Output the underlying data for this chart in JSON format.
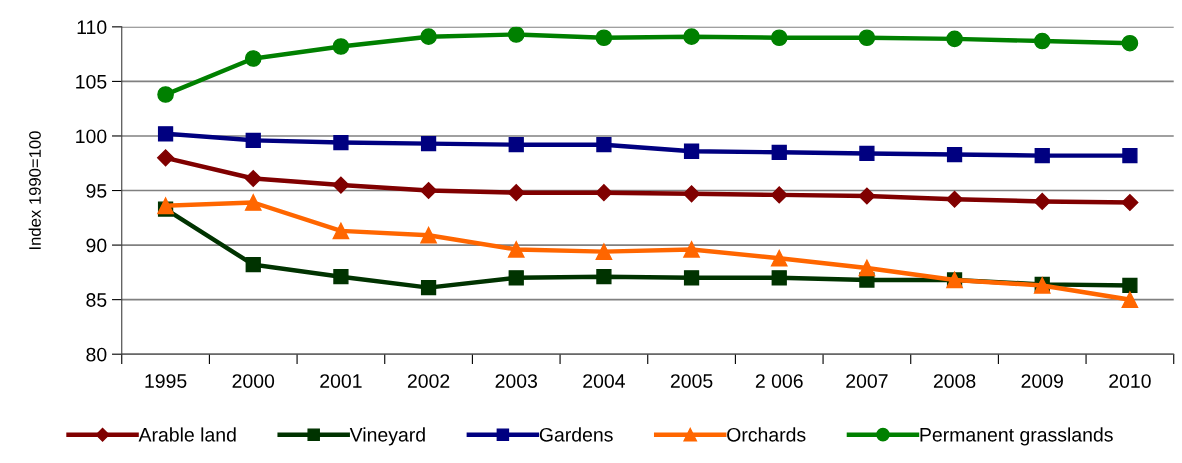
{
  "chart_data": {
    "type": "line",
    "ylabel": "Index 1990=100",
    "categories": [
      "1995",
      "2000",
      "2001",
      "2002",
      "2003",
      "2004",
      "2005",
      "2 006",
      "2007",
      "2008",
      "2009",
      "2010"
    ],
    "series": [
      {
        "name": "Arable land",
        "color": "#800000",
        "marker": "diamond",
        "values": [
          98.0,
          96.1,
          95.5,
          95.0,
          94.8,
          94.8,
          94.7,
          94.6,
          94.5,
          94.2,
          94.0,
          93.9
        ]
      },
      {
        "name": "Vineyard",
        "color": "#003300",
        "marker": "square",
        "values": [
          93.3,
          88.2,
          87.1,
          86.1,
          87.0,
          87.1,
          87.0,
          87.0,
          86.8,
          86.8,
          86.4,
          86.3
        ]
      },
      {
        "name": "Gardens",
        "color": "#000080",
        "marker": "square",
        "values": [
          100.2,
          99.6,
          99.4,
          99.3,
          99.2,
          99.2,
          98.6,
          98.5,
          98.4,
          98.3,
          98.2,
          98.2
        ]
      },
      {
        "name": "Orchards",
        "color": "#ff6600",
        "marker": "triangle",
        "values": [
          93.6,
          93.9,
          91.3,
          90.9,
          89.6,
          89.4,
          89.6,
          88.8,
          87.9,
          86.8,
          86.3,
          85.0
        ]
      },
      {
        "name": "Permanent grasslands",
        "color": "#008000",
        "marker": "circle",
        "values": [
          103.8,
          107.1,
          108.2,
          109.1,
          109.3,
          109.0,
          109.1,
          109.0,
          109.0,
          108.9,
          108.7,
          108.5
        ]
      }
    ],
    "ylim": [
      80,
      110
    ],
    "yticks": [
      80,
      85,
      90,
      95,
      100,
      105,
      110
    ],
    "grid": "y",
    "legend": "bottom",
    "line_style": "solid"
  }
}
